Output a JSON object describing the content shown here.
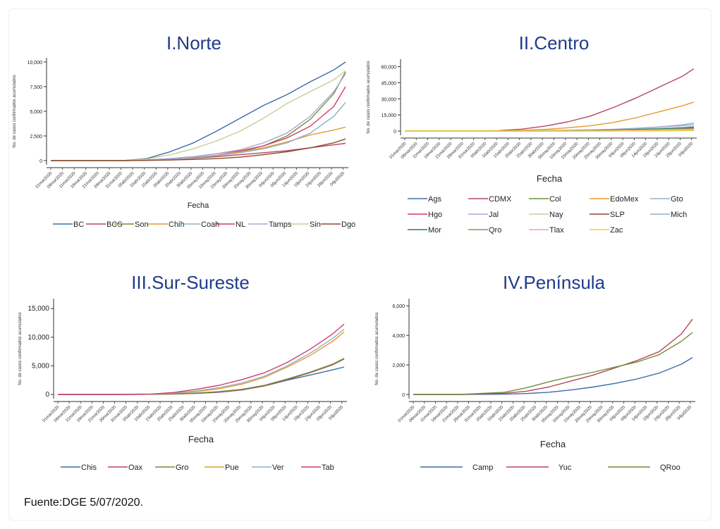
{
  "source_text": "Fuente:DGE 5/07/2020.",
  "x_tick_labels": [
    "01mar2020",
    "06mar2020",
    "11mar2020",
    "16mar2020",
    "21mar2020",
    "26mar2020",
    "31mar2020",
    "05abr2020",
    "10abr2020",
    "15abr2020",
    "20abr2020",
    "25abr2020",
    "30abr2020",
    "05may2020",
    "10may2020",
    "15may2020",
    "20may2020",
    "25may2020",
    "30may2020",
    "04jun2020",
    "09jun2020",
    "14jun2020",
    "19jun2020",
    "24jun2020",
    "29jun2020",
    "04jul2020"
  ],
  "chart_data": [
    {
      "type": "line",
      "title": "I.Norte",
      "xlabel": "Fecha",
      "ylabel": "No. de casos confirmados acumulados",
      "y_ticks": [
        0,
        2500,
        5000,
        7500,
        10000
      ],
      "y_tick_labels": [
        "0",
        "2,500",
        "5,000",
        "7,500",
        "10,000"
      ],
      "ylim": [
        0,
        10000
      ],
      "x_positions": [
        0,
        9,
        21,
        31,
        41,
        51,
        61,
        71,
        81,
        91,
        101,
        111,
        121,
        126
      ],
      "series": [
        {
          "name": "BC",
          "color": "#3b6ea8",
          "values": [
            0,
            0,
            0,
            10,
            200,
            900,
            1800,
            3000,
            4300,
            5600,
            6700,
            8000,
            9200,
            10000
          ]
        },
        {
          "name": "BCS",
          "color": "#b5475f",
          "values": [
            0,
            0,
            0,
            0,
            60,
            150,
            250,
            400,
            600,
            800,
            1000,
            1300,
            1600,
            1750
          ]
        },
        {
          "name": "Son",
          "color": "#6e8f3c",
          "values": [
            0,
            0,
            0,
            0,
            50,
            150,
            300,
            500,
            900,
            1500,
            2500,
            4200,
            6800,
            9000
          ]
        },
        {
          "name": "Chih",
          "color": "#e59a2e",
          "values": [
            0,
            0,
            0,
            0,
            40,
            150,
            300,
            550,
            900,
            1300,
            1900,
            2600,
            3100,
            3400
          ]
        },
        {
          "name": "Coah",
          "color": "#8fb3c4",
          "values": [
            0,
            0,
            0,
            0,
            40,
            150,
            300,
            500,
            800,
            1200,
            1800,
            2800,
            4500,
            5900
          ]
        },
        {
          "name": "NL",
          "color": "#d23c6b",
          "values": [
            0,
            0,
            0,
            0,
            60,
            200,
            400,
            700,
            1000,
            1500,
            2300,
            3500,
            5500,
            7500
          ]
        },
        {
          "name": "Tamps",
          "color": "#a8a8d8",
          "values": [
            0,
            0,
            0,
            0,
            60,
            200,
            400,
            700,
            1100,
            1800,
            2800,
            4500,
            7000,
            8800
          ]
        },
        {
          "name": "Sin",
          "color": "#c9ce96",
          "values": [
            0,
            0,
            0,
            0,
            150,
            600,
            1200,
            2000,
            3000,
            4300,
            5800,
            7000,
            8200,
            9100
          ]
        },
        {
          "name": "Dgo",
          "color": "#8a4a2c",
          "values": [
            0,
            0,
            0,
            0,
            20,
            60,
            120,
            200,
            350,
            600,
            900,
            1300,
            1800,
            2200
          ]
        }
      ],
      "legend_position": "bottom"
    },
    {
      "type": "line",
      "title": "II.Centro",
      "xlabel": "Fecha",
      "ylabel": "No. de casos confirmados acumulados",
      "y_ticks": [
        0,
        15000,
        30000,
        45000,
        60000
      ],
      "y_tick_labels": [
        "0",
        "15,000",
        "30,000",
        "45,000",
        "60,000"
      ],
      "ylim": [
        0,
        63000
      ],
      "x_positions": [
        0,
        21,
        41,
        51,
        61,
        71,
        81,
        91,
        101,
        111,
        121,
        126
      ],
      "series": [
        {
          "name": "Ags",
          "color": "#3b6ea8",
          "values": [
            0,
            0,
            10,
            50,
            150,
            300,
            500,
            900,
            1400,
            2000,
            2900,
            3400
          ]
        },
        {
          "name": "CDMX",
          "color": "#b5475f",
          "values": [
            0,
            0,
            400,
            1800,
            4500,
            8500,
            14000,
            22000,
            31000,
            41000,
            51000,
            58000
          ]
        },
        {
          "name": "Col",
          "color": "#6e8f3c",
          "values": [
            0,
            0,
            0,
            5,
            10,
            20,
            40,
            80,
            150,
            250,
            400,
            500
          ]
        },
        {
          "name": "EdoMex",
          "color": "#e59a2e",
          "values": [
            0,
            0,
            100,
            600,
            1500,
            3000,
            5000,
            8000,
            12500,
            18000,
            23500,
            27000
          ]
        },
        {
          "name": "Gto",
          "color": "#8fb3c4",
          "values": [
            0,
            0,
            20,
            80,
            200,
            400,
            800,
            1400,
            2400,
            3800,
            5800,
            7500
          ]
        },
        {
          "name": "Hgo",
          "color": "#d23c6b",
          "values": [
            0,
            0,
            20,
            80,
            200,
            400,
            700,
            1100,
            1600,
            2200,
            2900,
            3300
          ]
        },
        {
          "name": "Jal",
          "color": "#a8a8d8",
          "values": [
            0,
            0,
            40,
            150,
            300,
            600,
            1000,
            1600,
            2600,
            3800,
            5000,
            5900
          ]
        },
        {
          "name": "Nay",
          "color": "#c9ce96",
          "values": [
            0,
            0,
            0,
            10,
            30,
            60,
            120,
            250,
            450,
            700,
            1000,
            1200
          ]
        },
        {
          "name": "SLP",
          "color": "#8a4a2c",
          "values": [
            0,
            0,
            10,
            50,
            150,
            300,
            500,
            800,
            1300,
            1900,
            2700,
            3300
          ]
        },
        {
          "name": "Mich",
          "color": "#8fb3c4",
          "values": [
            0,
            0,
            20,
            100,
            250,
            450,
            700,
            1100,
            1700,
            2500,
            3500,
            4200
          ]
        },
        {
          "name": "Mor",
          "color": "#2f7f6a",
          "values": [
            0,
            0,
            20,
            100,
            250,
            450,
            750,
            1100,
            1500,
            1900,
            2400,
            2700
          ]
        },
        {
          "name": "Qro",
          "color": "#9b8f5a",
          "values": [
            0,
            0,
            10,
            50,
            120,
            250,
            400,
            650,
            1000,
            1400,
            1900,
            2200
          ]
        },
        {
          "name": "Tlax",
          "color": "#e3a3c4",
          "values": [
            0,
            0,
            5,
            40,
            100,
            200,
            350,
            550,
            800,
            1100,
            1500,
            1800
          ]
        },
        {
          "name": "Zac",
          "color": "#f2d22a",
          "values": [
            0,
            0,
            0,
            10,
            30,
            50,
            80,
            130,
            200,
            300,
            450,
            550
          ]
        }
      ],
      "legend_position": "bottom"
    },
    {
      "type": "line",
      "title": "III.Sur-Sureste",
      "xlabel": "Fecha",
      "ylabel": "No. de casos confirmados acumulados",
      "y_ticks": [
        0,
        5000,
        10000,
        15000
      ],
      "y_tick_labels": [
        "0",
        "5,000",
        "10,000",
        "15,000"
      ],
      "ylim": [
        0,
        16000
      ],
      "x_positions": [
        0,
        21,
        41,
        51,
        61,
        71,
        81,
        91,
        101,
        111,
        121,
        126
      ],
      "series": [
        {
          "name": "Chis",
          "color": "#3b6ea8",
          "values": [
            0,
            0,
            20,
            80,
            200,
            400,
            800,
            1500,
            2500,
            3400,
            4300,
            4800
          ]
        },
        {
          "name": "Oax",
          "color": "#b5475f",
          "values": [
            0,
            0,
            20,
            80,
            200,
            400,
            800,
            1500,
            2600,
            3800,
            5200,
            6200
          ]
        },
        {
          "name": "Gro",
          "color": "#6e8f3c",
          "values": [
            0,
            0,
            20,
            100,
            250,
            500,
            900,
            1600,
            2700,
            3900,
            5300,
            6300
          ]
        },
        {
          "name": "Pue",
          "color": "#e59a2e",
          "values": [
            0,
            0,
            50,
            200,
            500,
            1000,
            1800,
            3000,
            4800,
            6800,
            9300,
            10900
          ]
        },
        {
          "name": "Ver",
          "color": "#8fb3c4",
          "values": [
            0,
            0,
            60,
            250,
            600,
            1200,
            2000,
            3200,
            5000,
            7200,
            9800,
            11400
          ]
        },
        {
          "name": "Tab",
          "color": "#d23c6b",
          "values": [
            0,
            0,
            80,
            350,
            900,
            1600,
            2600,
            3800,
            5600,
            7900,
            10600,
            12300
          ]
        }
      ],
      "legend_position": "bottom"
    },
    {
      "type": "line",
      "title": "IV.Península",
      "xlabel": "Fecha",
      "ylabel": "No. de casos confirmados acumulados",
      "y_ticks": [
        0,
        2000,
        4000,
        6000
      ],
      "y_tick_labels": [
        "0",
        "2,000",
        "4,000",
        "6,000"
      ],
      "ylim": [
        0,
        6200
      ],
      "x_positions": [
        0,
        21,
        41,
        51,
        61,
        71,
        81,
        91,
        101,
        111,
        121,
        126
      ],
      "series": [
        {
          "name": "Camp",
          "color": "#3b6ea8",
          "values": [
            0,
            0,
            20,
            60,
            150,
            300,
            500,
            750,
            1050,
            1450,
            2050,
            2500
          ]
        },
        {
          "name": "Yuc",
          "color": "#b5475f",
          "values": [
            0,
            0,
            80,
            220,
            500,
            900,
            1300,
            1800,
            2300,
            2900,
            4100,
            5100
          ]
        },
        {
          "name": "QRoo",
          "color": "#6e8f3c",
          "values": [
            0,
            0,
            150,
            450,
            850,
            1200,
            1500,
            1850,
            2200,
            2700,
            3600,
            4200
          ]
        }
      ],
      "legend_position": "bottom"
    }
  ]
}
